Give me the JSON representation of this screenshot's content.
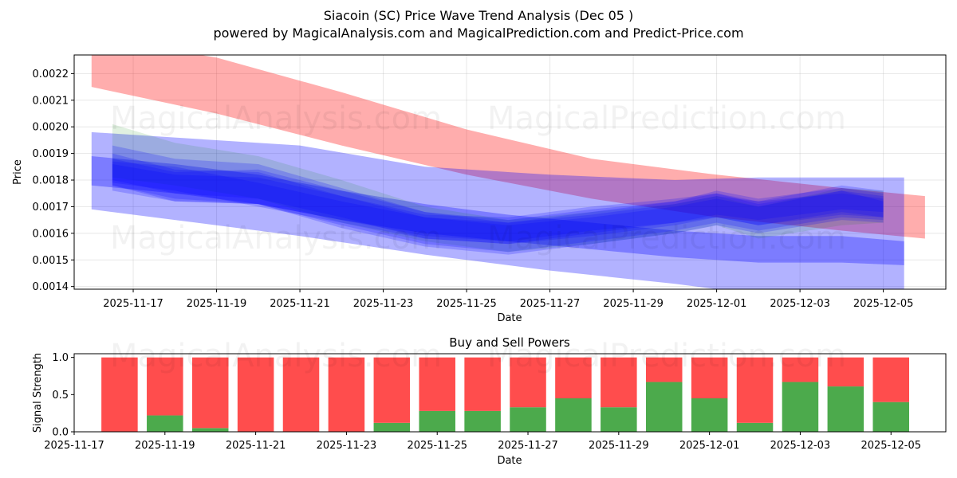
{
  "header": {
    "title": "Siacoin (SC) Price Wave Trend Analysis (Dec 05 )",
    "subtitle": "powered by MagicalAnalysis.com and MagicalPrediction.com and Predict-Price.com"
  },
  "watermarks": [
    "MagicalAnalysis.com",
    "MagicalPrediction.com"
  ],
  "colors": {
    "red": "#ff0000",
    "blue": "#0000ff",
    "green": "#008000",
    "sell": "#ff4d4d",
    "buy": "#4caa4c"
  },
  "chart_data": [
    {
      "type": "area",
      "title": "",
      "xlabel": "Date",
      "ylabel": "Price",
      "x_domain": [
        "2025-11-15T14:00",
        "2025-12-06T12:00"
      ],
      "ylim": [
        0.00139,
        0.00227
      ],
      "grid": true,
      "yticks": [
        0.0014,
        0.0015,
        0.0016,
        0.0017,
        0.0018,
        0.0019,
        0.002,
        0.0021,
        0.0022
      ],
      "ytick_labels": [
        "0.0014",
        "0.0015",
        "0.0016",
        "0.0017",
        "0.0018",
        "0.0019",
        "0.0020",
        "0.0021",
        "0.0022"
      ],
      "xticks": [
        "2025-11-17",
        "2025-11-19",
        "2025-11-21",
        "2025-11-23",
        "2025-11-25",
        "2025-11-27",
        "2025-11-29",
        "2025-12-01",
        "2025-12-03",
        "2025-12-05"
      ],
      "bands": [
        {
          "name": "red upper band",
          "color": "red",
          "x": [
            "2025-11-16",
            "2025-11-19",
            "2025-11-22",
            "2025-11-25",
            "2025-11-28",
            "2025-12-01",
            "2025-12-04",
            "2025-12-06"
          ],
          "upper": [
            0.00234,
            0.00226,
            0.00213,
            0.00199,
            0.00188,
            0.00182,
            0.00177,
            0.00174
          ],
          "lower": [
            0.00215,
            0.00205,
            0.00193,
            0.00182,
            0.00173,
            0.00166,
            0.00161,
            0.00158
          ]
        },
        {
          "name": "blue wide band",
          "color": "blue",
          "x": [
            "2025-11-16",
            "2025-11-18",
            "2025-11-21",
            "2025-11-24",
            "2025-11-27",
            "2025-11-30",
            "2025-12-02",
            "2025-12-04",
            "2025-12-05T12:00"
          ],
          "upper": [
            0.00198,
            0.00196,
            0.00193,
            0.00185,
            0.00182,
            0.0018,
            0.00181,
            0.00181,
            0.00181
          ],
          "lower": [
            0.00169,
            0.00165,
            0.00159,
            0.00152,
            0.00146,
            0.00141,
            0.00137,
            0.00134,
            0.00135
          ]
        },
        {
          "name": "blue trend band",
          "color": "blue",
          "x": [
            "2025-11-16",
            "2025-11-18",
            "2025-11-20",
            "2025-11-22",
            "2025-11-24",
            "2025-11-26",
            "2025-11-28",
            "2025-11-30",
            "2025-12-02",
            "2025-12-04",
            "2025-12-05T12:00"
          ],
          "upper": [
            0.00189,
            0.00186,
            0.00182,
            0.00176,
            0.00171,
            0.00167,
            0.00164,
            0.00161,
            0.00159,
            0.00159,
            0.00157
          ],
          "lower": [
            0.00178,
            0.00175,
            0.00171,
            0.00165,
            0.0016,
            0.00157,
            0.00154,
            0.00151,
            0.00149,
            0.00149,
            0.00148
          ]
        },
        {
          "name": "green wave band",
          "color": "green",
          "x": [
            "2025-11-16T12:00",
            "2025-11-18",
            "2025-11-20",
            "2025-11-22",
            "2025-11-24",
            "2025-11-26",
            "2025-11-28",
            "2025-11-30",
            "2025-12-01",
            "2025-12-02",
            "2025-12-04",
            "2025-12-05"
          ],
          "upper": [
            0.00201,
            0.00194,
            0.00189,
            0.0018,
            0.0017,
            0.00165,
            0.00168,
            0.00171,
            0.00174,
            0.0017,
            0.00177,
            0.00176
          ],
          "lower": [
            0.00181,
            0.00178,
            0.00173,
            0.00164,
            0.00157,
            0.00153,
            0.00156,
            0.0016,
            0.00163,
            0.00158,
            0.00163,
            0.00164
          ]
        },
        {
          "name": "blue wave 1",
          "color": "blue",
          "x": [
            "2025-11-16T12:00",
            "2025-11-18",
            "2025-11-20",
            "2025-11-22",
            "2025-11-24",
            "2025-11-26",
            "2025-11-28",
            "2025-11-30",
            "2025-12-01",
            "2025-12-02",
            "2025-12-04",
            "2025-12-05"
          ],
          "upper": [
            0.00193,
            0.00188,
            0.00186,
            0.00177,
            0.00168,
            0.00165,
            0.00169,
            0.00172,
            0.00175,
            0.00172,
            0.00178,
            0.00176
          ],
          "lower": [
            0.00178,
            0.00172,
            0.00171,
            0.00162,
            0.00155,
            0.00152,
            0.00156,
            0.0016,
            0.00163,
            0.0016,
            0.00165,
            0.00164
          ]
        },
        {
          "name": "blue wave 2",
          "color": "blue",
          "x": [
            "2025-11-16T12:00",
            "2025-11-18",
            "2025-11-20",
            "2025-11-22",
            "2025-11-24",
            "2025-11-26",
            "2025-11-28",
            "2025-11-30",
            "2025-12-01",
            "2025-12-02",
            "2025-12-04",
            "2025-12-05"
          ],
          "upper": [
            0.0019,
            0.00184,
            0.00183,
            0.00174,
            0.00166,
            0.00163,
            0.00166,
            0.0017,
            0.00173,
            0.0017,
            0.00176,
            0.00174
          ],
          "lower": [
            0.00178,
            0.00173,
            0.00171,
            0.00163,
            0.00156,
            0.00153,
            0.00157,
            0.00161,
            0.00164,
            0.00161,
            0.00166,
            0.00165
          ]
        },
        {
          "name": "blue wave 3",
          "color": "blue",
          "x": [
            "2025-11-16T12:00",
            "2025-11-18",
            "2025-11-20",
            "2025-11-22",
            "2025-11-24",
            "2025-11-26",
            "2025-11-28",
            "2025-11-30",
            "2025-12-01",
            "2025-12-02",
            "2025-12-04",
            "2025-12-05"
          ],
          "upper": [
            0.00188,
            0.00183,
            0.00184,
            0.00176,
            0.00168,
            0.00164,
            0.00167,
            0.00171,
            0.00174,
            0.00172,
            0.00175,
            0.00173
          ],
          "lower": [
            0.0018,
            0.00175,
            0.00173,
            0.00166,
            0.00158,
            0.00156,
            0.00159,
            0.00163,
            0.00166,
            0.00163,
            0.00167,
            0.00166
          ]
        },
        {
          "name": "blue wave 4",
          "color": "blue",
          "x": [
            "2025-11-16T12:00",
            "2025-11-18",
            "2025-11-20",
            "2025-11-22",
            "2025-11-24",
            "2025-11-26",
            "2025-11-28",
            "2025-11-30",
            "2025-12-01",
            "2025-12-02",
            "2025-12-04",
            "2025-12-05"
          ],
          "upper": [
            0.00186,
            0.00182,
            0.00181,
            0.00174,
            0.00167,
            0.00166,
            0.0017,
            0.00173,
            0.00175,
            0.00171,
            0.00176,
            0.00172
          ],
          "lower": [
            0.00176,
            0.00172,
            0.00171,
            0.00165,
            0.00159,
            0.00157,
            0.00161,
            0.00164,
            0.00166,
            0.00163,
            0.00168,
            0.00166
          ]
        },
        {
          "name": "blue wave 5",
          "color": "blue",
          "x": [
            "2025-11-16T12:00",
            "2025-11-18",
            "2025-11-20",
            "2025-11-22",
            "2025-11-24",
            "2025-11-26",
            "2025-11-28",
            "2025-11-30",
            "2025-12-01",
            "2025-12-02",
            "2025-12-04",
            "2025-12-05"
          ],
          "upper": [
            0.00187,
            0.00185,
            0.00179,
            0.00172,
            0.00166,
            0.00164,
            0.00168,
            0.00172,
            0.00176,
            0.00173,
            0.00177,
            0.00175
          ],
          "lower": [
            0.00179,
            0.00176,
            0.0017,
            0.00164,
            0.00158,
            0.00156,
            0.0016,
            0.00164,
            0.00167,
            0.00165,
            0.00169,
            0.00168
          ]
        }
      ]
    },
    {
      "type": "bar",
      "title": "Buy and Sell Powers",
      "xlabel": "Date",
      "ylabel": "Signal Strength",
      "x_domain": [
        "2025-11-17T00:00",
        "2025-12-06T05:00"
      ],
      "ylim": [
        0,
        1.05
      ],
      "yticks": [
        0.0,
        0.5,
        1.0
      ],
      "ytick_labels": [
        "0.0",
        "0.5",
        "1.0"
      ],
      "xticks": [
        "2025-11-17",
        "2025-11-19",
        "2025-11-21",
        "2025-11-23",
        "2025-11-25",
        "2025-11-27",
        "2025-11-29",
        "2025-12-01",
        "2025-12-03",
        "2025-12-05"
      ],
      "categories": [
        "2025-11-18",
        "2025-11-19",
        "2025-11-20",
        "2025-11-21",
        "2025-11-22",
        "2025-11-23",
        "2025-11-24",
        "2025-11-25",
        "2025-11-26",
        "2025-11-27",
        "2025-11-28",
        "2025-11-29",
        "2025-11-30",
        "2025-12-01",
        "2025-12-02",
        "2025-12-03",
        "2025-12-04",
        "2025-12-05"
      ],
      "series": [
        {
          "name": "Buy",
          "color": "buy",
          "values": [
            0.0,
            0.22,
            0.05,
            0.0,
            0.0,
            0.0,
            0.12,
            0.28,
            0.28,
            0.33,
            0.45,
            0.33,
            0.67,
            0.45,
            0.12,
            0.67,
            0.61,
            0.4
          ]
        },
        {
          "name": "Sell",
          "color": "sell",
          "values": [
            1.0,
            0.78,
            0.95,
            1.0,
            1.0,
            1.0,
            0.88,
            0.72,
            0.72,
            0.67,
            0.55,
            0.67,
            0.33,
            0.55,
            0.88,
            0.33,
            0.39,
            0.6
          ]
        }
      ]
    }
  ]
}
